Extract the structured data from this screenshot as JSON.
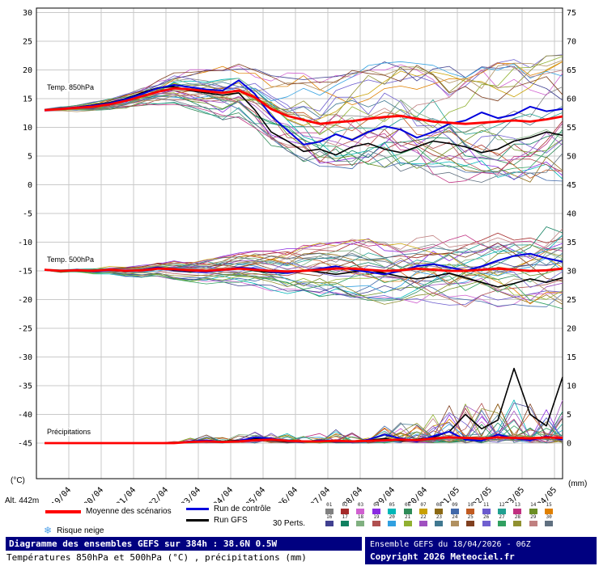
{
  "labels": {
    "alt": "Alt. 442m",
    "left_unit": "(°C)",
    "right_unit": "(mm)",
    "temp850": "Temp. 850hPa",
    "temp500": "Temp. 500hPa",
    "precip": "Précipitations"
  },
  "legend": {
    "mean": "Moyenne des scénarios",
    "control": "Run de contrôle",
    "gfs": "Run GFS",
    "perts": "30 Perts.",
    "snow": "Risque neige",
    "member_numbers": [
      "01",
      "02",
      "03",
      "04",
      "05",
      "06",
      "07",
      "08",
      "09",
      "10",
      "11",
      "12",
      "13",
      "14",
      "15",
      "16",
      "17",
      "18",
      "19",
      "20",
      "21",
      "22",
      "23",
      "24",
      "25",
      "26",
      "27",
      "28",
      "29",
      "30"
    ]
  },
  "footer": {
    "title": "Diagramme des ensembles GEFS sur 384h : 38.6N 0.5W",
    "subtitle": "Températures 850hPa et 500hPa (°C) , précipitations (mm)",
    "run_info": "Ensemble GEFS du 18/04/2026 - 06Z",
    "copyright": "Copyright 2026 Meteociel.fr"
  },
  "chart_data": {
    "type": "line",
    "title": "Diagramme des ensembles GEFS sur 384h : 38.6N 0.5W",
    "run": "18/04/2026 06Z",
    "hours": 384,
    "step_hours": 12,
    "x_dates": [
      "19/04",
      "20/04",
      "21/04",
      "22/04",
      "23/04",
      "24/04",
      "25/04",
      "26/04",
      "27/04",
      "28/04",
      "29/04",
      "30/04",
      "01/05",
      "02/05",
      "03/05",
      "04/05"
    ],
    "left_axis": {
      "label": "(°C)",
      "min": -45,
      "max": 30,
      "tick": 5
    },
    "right_axis": {
      "label": "(mm)",
      "min": 0,
      "max": 75,
      "tick": 5
    },
    "grid": true,
    "legend_position": "bottom",
    "colors": {
      "mean": "#ff0000",
      "control": "#0000dd",
      "gfs": "#000000"
    },
    "member_colors": [
      "#808080",
      "#a52a2a",
      "#d060d0",
      "#8a2be2",
      "#00b7b7",
      "#2e8b57",
      "#c8a000",
      "#8b6914",
      "#4169aa",
      "#c05a20",
      "#6a5acd",
      "#20a090",
      "#c03080",
      "#6b8e23",
      "#e08000",
      "#404090",
      "#108060",
      "#80b080",
      "#b05050",
      "#30a0e0",
      "#90b030",
      "#a050c0",
      "#407890",
      "#b09060",
      "#804020",
      "#7060d0",
      "#30a060",
      "#909030",
      "#c08080",
      "#607080"
    ],
    "temp850": {
      "label": "Temp. 850hPa",
      "mean": [
        13.0,
        13.2,
        13.4,
        13.6,
        14.0,
        14.6,
        15.4,
        16.2,
        16.8,
        16.6,
        16.3,
        16.0,
        16.4,
        15.2,
        13.2,
        12.0,
        11.3,
        10.6,
        10.9,
        11.1,
        11.5,
        11.8,
        12.0,
        11.5,
        11.0,
        10.8,
        10.6,
        10.8,
        11.0,
        11.2,
        11.0,
        11.4,
        11.9
      ],
      "control": [
        13.0,
        13.3,
        13.5,
        13.8,
        14.2,
        14.9,
        15.8,
        16.8,
        17.4,
        17.0,
        16.6,
        16.4,
        18.2,
        15.8,
        12.0,
        9.5,
        7.0,
        7.5,
        8.8,
        7.8,
        9.2,
        10.2,
        9.6,
        8.2,
        9.2,
        10.6,
        11.2,
        12.6,
        11.6,
        12.2,
        13.6,
        12.8,
        13.2
      ],
      "gfs": [
        13.0,
        13.2,
        13.5,
        13.9,
        14.3,
        15.0,
        16.0,
        16.9,
        17.1,
        16.4,
        16.0,
        15.6,
        16.0,
        13.0,
        9.2,
        7.6,
        5.8,
        6.2,
        5.2,
        6.6,
        7.2,
        6.2,
        5.6,
        6.6,
        7.6,
        7.2,
        6.6,
        5.6,
        6.2,
        7.6,
        8.2,
        9.2,
        8.6
      ],
      "spread": [
        0.3,
        0.4,
        0.5,
        0.6,
        0.7,
        0.9,
        1.1,
        1.3,
        1.6,
        1.9,
        2.2,
        2.5,
        2.8,
        3.2,
        3.6,
        4.0,
        4.3,
        4.5,
        4.7,
        4.9,
        5.0,
        5.1,
        5.2,
        5.3,
        5.4,
        5.5,
        5.5,
        5.6,
        5.7,
        5.8,
        5.9,
        6.0,
        6.0
      ]
    },
    "temp500": {
      "label": "Temp. 500hPa",
      "mean": [
        -14.8,
        -15.0,
        -14.9,
        -15.0,
        -14.8,
        -15.0,
        -14.9,
        -14.6,
        -14.7,
        -14.9,
        -15.0,
        -14.8,
        -14.6,
        -14.8,
        -15.0,
        -15.1,
        -15.0,
        -14.8,
        -14.6,
        -14.6,
        -14.8,
        -15.0,
        -14.9,
        -14.6,
        -14.8,
        -15.0,
        -15.0,
        -14.8,
        -14.6,
        -14.8,
        -15.0,
        -14.9,
        -14.6
      ],
      "control": [
        -14.8,
        -15.0,
        -14.8,
        -15.1,
        -14.9,
        -15.0,
        -14.8,
        -14.4,
        -14.8,
        -15.0,
        -15.2,
        -14.9,
        -14.4,
        -14.6,
        -15.2,
        -15.4,
        -15.0,
        -14.6,
        -14.2,
        -14.8,
        -15.2,
        -15.6,
        -15.0,
        -14.2,
        -13.8,
        -14.4,
        -15.0,
        -14.2,
        -13.2,
        -12.4,
        -12.0,
        -12.8,
        -13.4
      ],
      "gfs": [
        -14.8,
        -15.0,
        -14.9,
        -15.0,
        -14.9,
        -15.1,
        -14.8,
        -14.5,
        -14.9,
        -15.1,
        -15.0,
        -14.7,
        -14.5,
        -15.0,
        -15.3,
        -15.2,
        -14.9,
        -15.2,
        -15.6,
        -15.2,
        -14.8,
        -15.4,
        -16.0,
        -16.4,
        -16.0,
        -15.4,
        -16.2,
        -17.0,
        -17.8,
        -17.2,
        -16.4,
        -17.0,
        -16.2
      ],
      "spread": [
        0.2,
        0.3,
        0.3,
        0.4,
        0.5,
        0.6,
        0.7,
        0.8,
        1.0,
        1.1,
        1.3,
        1.4,
        1.6,
        1.8,
        2.0,
        2.2,
        2.4,
        2.5,
        2.7,
        2.8,
        3.0,
        3.1,
        3.2,
        3.3,
        3.4,
        3.5,
        3.6,
        3.6,
        3.7,
        3.8,
        3.9,
        4.0,
        4.0
      ]
    },
    "precip": {
      "label": "Précipitations",
      "mean": [
        0,
        0,
        0,
        0,
        0,
        0,
        0,
        0,
        0,
        0.2,
        0.3,
        0.2,
        0.3,
        0.5,
        0.6,
        0.4,
        0.3,
        0.3,
        0.4,
        0.3,
        0.4,
        0.5,
        0.6,
        0.5,
        0.8,
        1.0,
        0.9,
        0.8,
        1.0,
        0.9,
        0.8,
        1.0,
        0.9
      ],
      "control": [
        0,
        0,
        0,
        0,
        0,
        0,
        0,
        0,
        0,
        0.3,
        0.5,
        0.2,
        0.4,
        1.0,
        0.8,
        0.3,
        0.2,
        0.5,
        0.3,
        0.2,
        0.6,
        1.5,
        0.8,
        0.3,
        1.2,
        2.0,
        0.6,
        0.4,
        1.5,
        0.8,
        0.5,
        1.2,
        0.6
      ],
      "gfs": [
        0,
        0,
        0,
        0,
        0,
        0,
        0,
        0,
        0,
        0.2,
        0.4,
        0.3,
        0.5,
        0.8,
        0.5,
        0.2,
        0.3,
        0.4,
        0.2,
        0.3,
        0.5,
        0.8,
        0.4,
        0.6,
        1.0,
        2.0,
        5.0,
        2.5,
        4.0,
        13.0,
        5.0,
        3.0,
        11.5
      ],
      "spread": [
        0,
        0,
        0,
        0,
        0,
        0,
        0,
        0,
        0.2,
        0.5,
        0.8,
        0.6,
        0.8,
        1.2,
        1.5,
        1.0,
        0.8,
        1.0,
        1.2,
        1.0,
        1.5,
        2.0,
        2.5,
        2.0,
        3.0,
        4.0,
        5.0,
        4.0,
        4.5,
        5.0,
        4.5,
        4.0,
        5.0
      ]
    }
  }
}
